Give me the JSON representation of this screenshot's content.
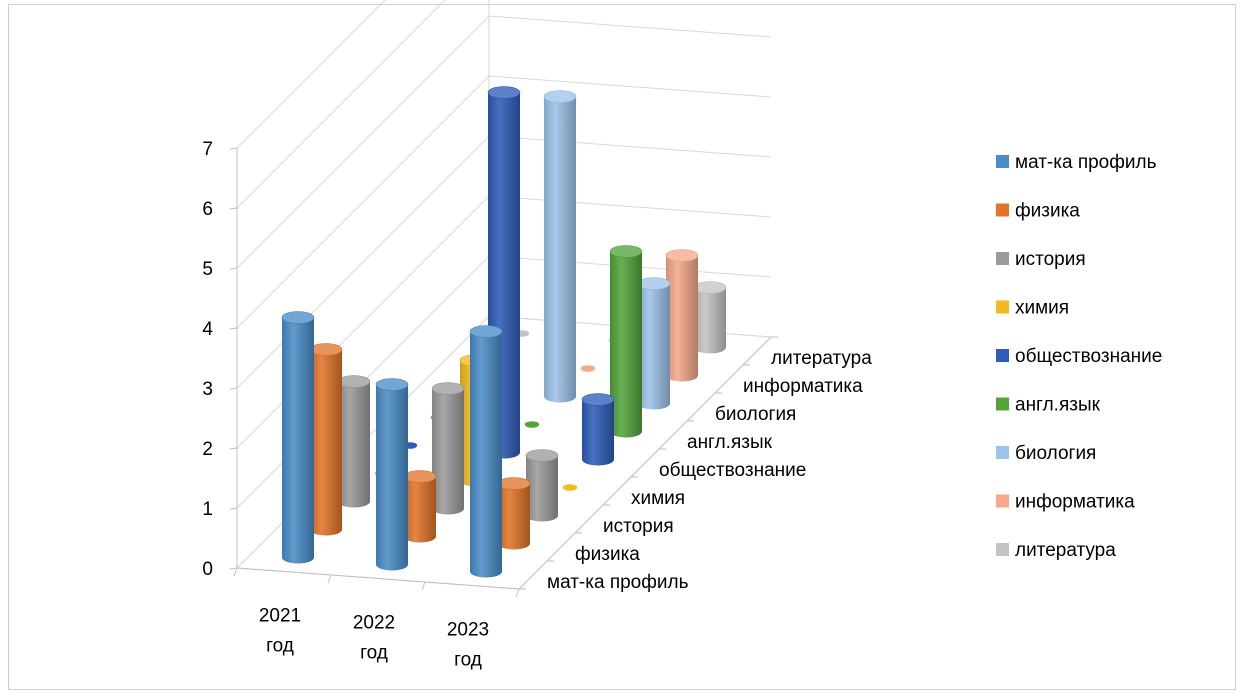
{
  "chart_data": {
    "type": "bar",
    "subtype": "3d-cylinder",
    "title": "",
    "xlabel": "",
    "ylabel": "",
    "ylim": [
      0,
      7
    ],
    "y_ticks": [
      "0",
      "1",
      "2",
      "3",
      "4",
      "5",
      "6",
      "7"
    ],
    "grid": true,
    "legend_position": "right",
    "categories": [
      [
        "2021",
        "год"
      ],
      [
        "2022",
        "год"
      ],
      [
        "2023",
        "год"
      ]
    ],
    "depth_labels": [
      "мат-ка профиль",
      "физика",
      "история",
      "химия",
      "обществознание",
      "англ.язык",
      "биология",
      "информатика",
      "литература"
    ],
    "series": [
      {
        "name": "мат-ка профиль",
        "color": "#4A8DC9",
        "values": [
          4,
          3,
          4
        ]
      },
      {
        "name": "физика",
        "color": "#E2742A",
        "values": [
          3,
          1,
          1
        ]
      },
      {
        "name": "история",
        "color": "#9B9B9B",
        "values": [
          2,
          2,
          1
        ]
      },
      {
        "name": "химия",
        "color": "#F2BA1C",
        "values": [
          0,
          2,
          0
        ]
      },
      {
        "name": "обществознание",
        "color": "#2F5CB8",
        "values": [
          0,
          6,
          1
        ]
      },
      {
        "name": "англ.язык",
        "color": "#54A43C",
        "values": [
          0,
          0,
          3
        ]
      },
      {
        "name": "биология",
        "color": "#9DC3E9",
        "values": [
          0,
          5,
          2
        ]
      },
      {
        "name": "информатика",
        "color": "#F6A98A",
        "values": [
          0,
          0,
          2
        ]
      },
      {
        "name": "литература",
        "color": "#C4C4C4",
        "values": [
          0,
          0,
          1
        ]
      }
    ]
  }
}
